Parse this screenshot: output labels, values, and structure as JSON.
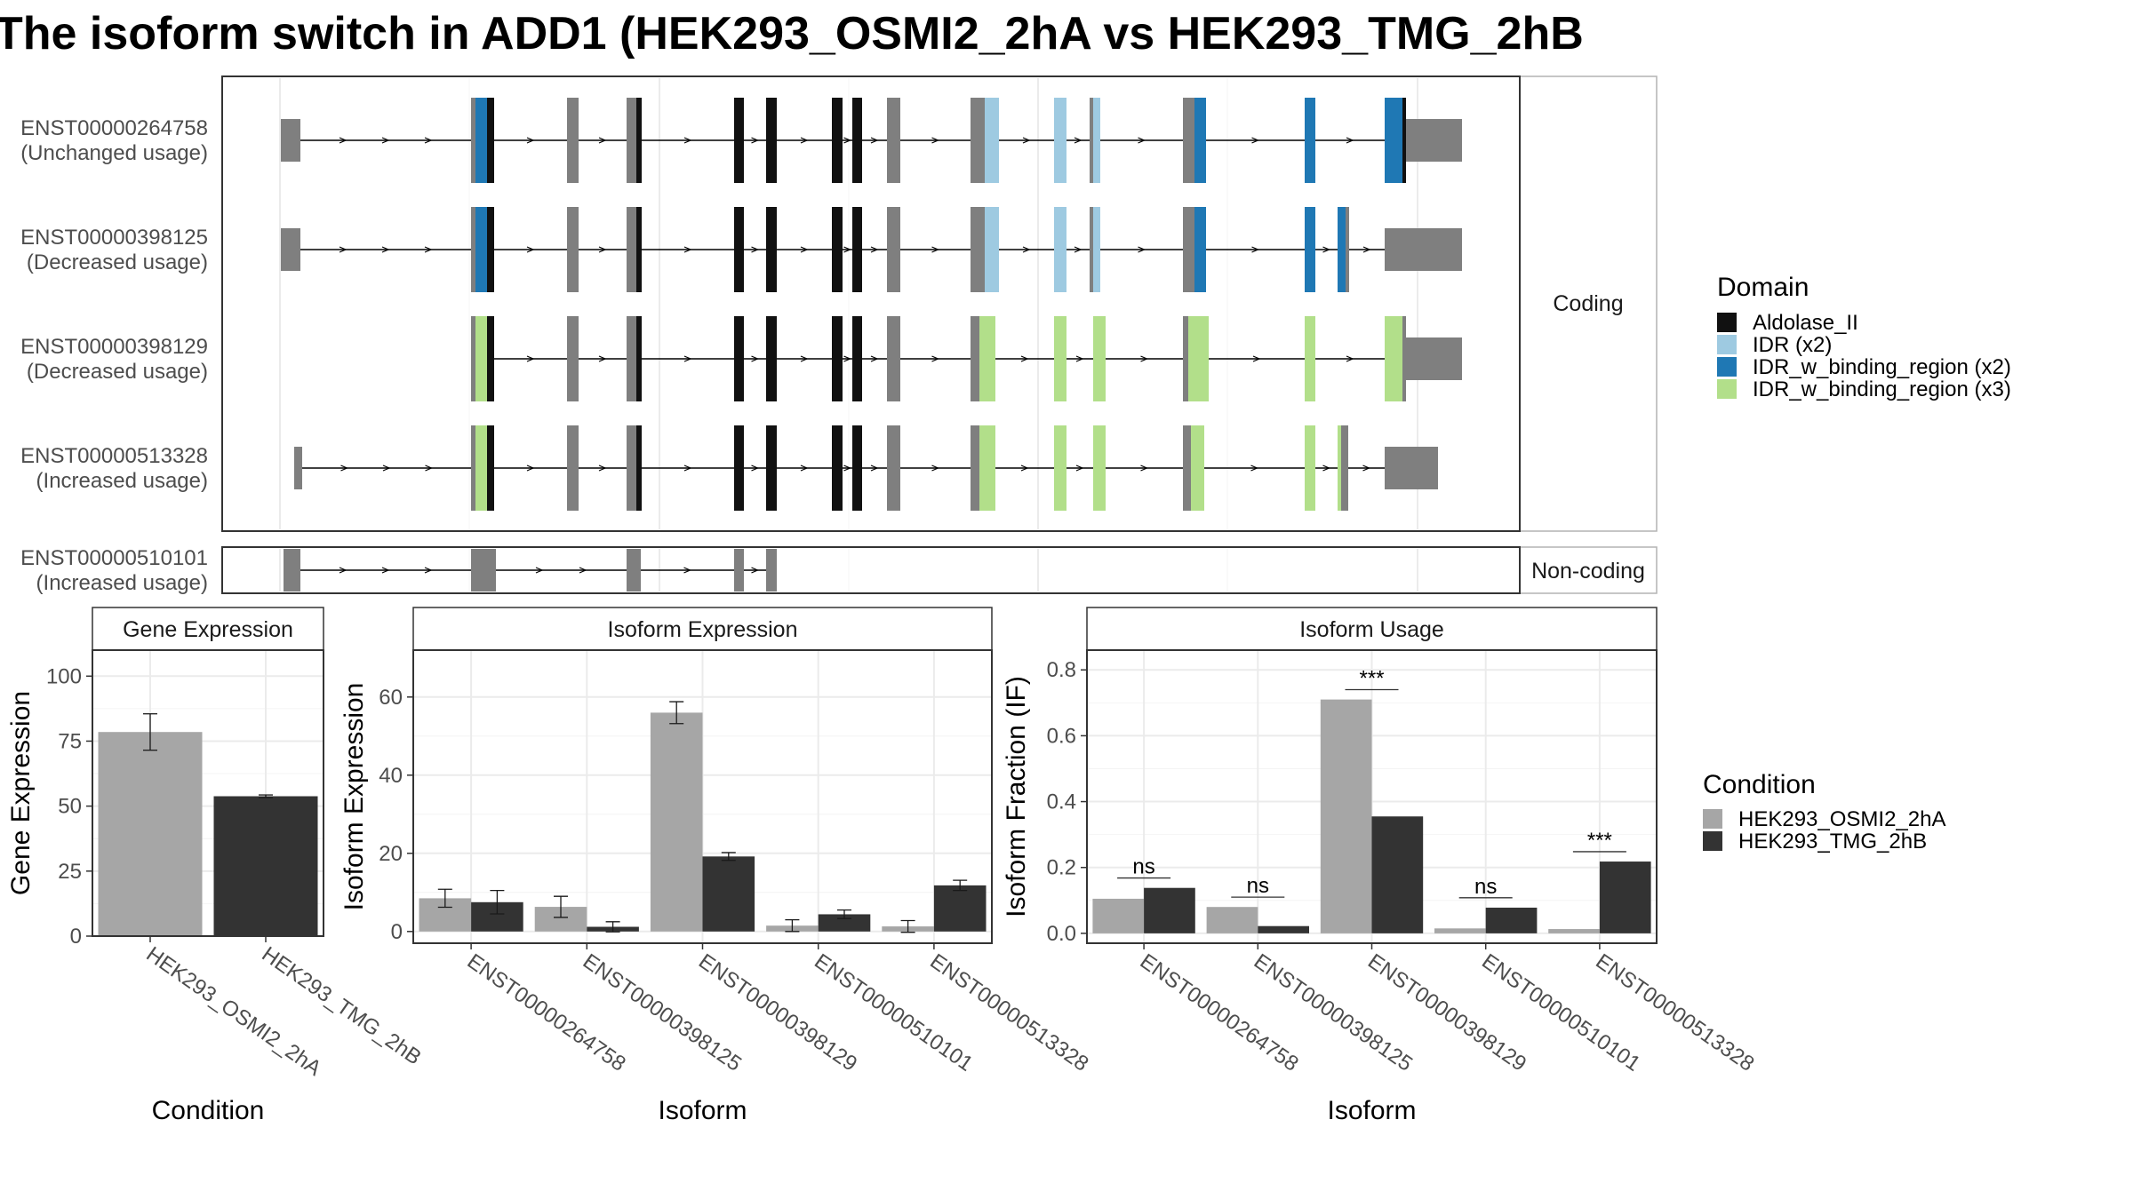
{
  "title": "The isoform switch in ADD1 (HEK293_OSMI2_2hA vs HEK293_TMG_2hB",
  "colors": {
    "intron": "#000000",
    "exon_plain": "#7f7f7f",
    "domain": {
      "Aldolase_II": "#111111",
      "IDR (x2)": "#9ecae1",
      "IDR_w_binding_region (x2)": "#1f78b4",
      "IDR_w_binding_region (x3)": "#b2df8a"
    },
    "condition": {
      "HEK293_OSMI2_2hA": "#a6a6a6",
      "HEK293_TMG_2hB": "#333333"
    }
  },
  "structure": {
    "panel_labels": {
      "coding": "Coding",
      "noncoding": "Non-coding"
    },
    "isoforms": [
      {
        "id": "ENST00000264758",
        "usage": "(Unchanged usage)"
      },
      {
        "id": "ENST00000398125",
        "usage": "(Decreased usage)"
      },
      {
        "id": "ENST00000398129",
        "usage": "(Decreased usage)"
      },
      {
        "id": "ENST00000513328",
        "usage": "(Increased usage)"
      },
      {
        "id": "ENST00000510101",
        "usage": "(Increased usage)"
      }
    ]
  },
  "legends": {
    "domain": {
      "title": "Domain",
      "items": [
        "Aldolase_II",
        "IDR (x2)",
        "IDR_w_binding_region (x2)",
        "IDR_w_binding_region (x3)"
      ]
    },
    "condition": {
      "title": "Condition",
      "items": [
        "HEK293_OSMI2_2hA",
        "HEK293_TMG_2hB"
      ]
    }
  },
  "chart_data": [
    {
      "type": "bar",
      "title": "Gene Expression",
      "xlabel": "Condition",
      "ylabel": "Gene Expression",
      "categories": [
        "HEK293_OSMI2_2hA",
        "HEK293_TMG_2hB"
      ],
      "values": [
        78.5,
        53.8
      ],
      "errors": [
        7,
        0.5
      ],
      "ylim": [
        0,
        110
      ],
      "yticks": [
        0,
        25,
        50,
        75,
        100
      ]
    },
    {
      "type": "bar",
      "title": "Isoform Expression",
      "xlabel": "Isoform",
      "ylabel": "Isoform Expression",
      "categories": [
        "ENST00000264758",
        "ENST00000398125",
        "ENST00000398129",
        "ENST00000510101",
        "ENST00000513328"
      ],
      "series": [
        {
          "name": "HEK293_OSMI2_2hA",
          "values": [
            8.5,
            6.3,
            56.0,
            1.5,
            1.3
          ],
          "errors": [
            2.3,
            2.7,
            2.8,
            1.5,
            1.5
          ]
        },
        {
          "name": "HEK293_TMG_2hB",
          "values": [
            7.5,
            1.2,
            19.2,
            4.4,
            11.8
          ],
          "errors": [
            3.0,
            1.3,
            1.0,
            1.1,
            1.3
          ]
        }
      ],
      "ylim": [
        -3,
        72
      ],
      "yticks": [
        0,
        20,
        40,
        60
      ]
    },
    {
      "type": "bar",
      "title": "Isoform Usage",
      "xlabel": "Isoform",
      "ylabel": "Isoform Fraction (IF)",
      "categories": [
        "ENST00000264758",
        "ENST00000398125",
        "ENST00000398129",
        "ENST00000510101",
        "ENST00000513328"
      ],
      "series": [
        {
          "name": "HEK293_OSMI2_2hA",
          "values": [
            0.105,
            0.08,
            0.71,
            0.015,
            0.013
          ]
        },
        {
          "name": "HEK293_TMG_2hB",
          "values": [
            0.138,
            0.022,
            0.355,
            0.078,
            0.218
          ]
        }
      ],
      "significance": [
        "ns",
        "ns",
        "***",
        "ns",
        "***"
      ],
      "ylim": [
        -0.03,
        0.86
      ],
      "yticks": [
        0.0,
        0.2,
        0.4,
        0.6,
        0.8
      ],
      "ytick_labels": [
        "0.0",
        "0.2",
        "0.4",
        "0.6",
        "0.8"
      ]
    }
  ]
}
